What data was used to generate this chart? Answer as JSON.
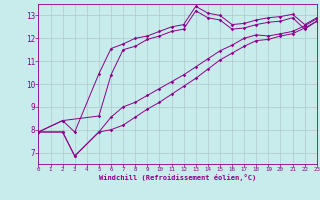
{
  "xlabel": "Windchill (Refroidissement éolien,°C)",
  "xlim": [
    0,
    23
  ],
  "ylim": [
    6.5,
    13.5
  ],
  "xticks": [
    0,
    1,
    2,
    3,
    4,
    5,
    6,
    7,
    8,
    9,
    10,
    11,
    12,
    13,
    14,
    15,
    16,
    17,
    18,
    19,
    20,
    21,
    22,
    23
  ],
  "yticks": [
    7,
    8,
    9,
    10,
    11,
    12,
    13
  ],
  "line_color": "#8b008b",
  "bg_color": "#c8ecec",
  "grid_color": "#b0c8c8",
  "lines": [
    {
      "x": [
        0,
        2,
        3,
        5,
        6,
        7,
        8,
        9,
        10,
        11,
        12,
        13,
        14,
        15,
        16,
        17,
        18,
        19,
        20,
        21,
        22,
        23
      ],
      "y": [
        7.9,
        8.4,
        7.9,
        10.45,
        11.55,
        11.75,
        12.0,
        12.1,
        12.3,
        12.5,
        12.6,
        13.4,
        13.1,
        13.0,
        12.6,
        12.65,
        12.8,
        12.9,
        12.95,
        13.05,
        12.6,
        12.9
      ]
    },
    {
      "x": [
        0,
        2,
        5,
        6,
        7,
        8,
        9,
        10,
        11,
        12,
        13,
        14,
        15,
        16,
        17,
        18,
        19,
        20,
        21,
        22,
        23
      ],
      "y": [
        7.9,
        8.4,
        8.6,
        10.4,
        11.5,
        11.65,
        11.95,
        12.1,
        12.3,
        12.4,
        13.2,
        12.9,
        12.8,
        12.4,
        12.45,
        12.6,
        12.7,
        12.75,
        12.9,
        12.4,
        12.75
      ]
    },
    {
      "x": [
        0,
        2,
        3,
        5,
        6,
        7,
        8,
        9,
        10,
        11,
        12,
        13,
        14,
        15,
        16,
        17,
        18,
        19,
        20,
        21,
        22,
        23
      ],
      "y": [
        7.9,
        7.9,
        6.85,
        7.9,
        8.55,
        9.0,
        9.2,
        9.5,
        9.8,
        10.1,
        10.4,
        10.75,
        11.1,
        11.45,
        11.7,
        12.0,
        12.15,
        12.1,
        12.2,
        12.3,
        12.55,
        12.85
      ]
    },
    {
      "x": [
        0,
        2,
        3,
        5,
        6,
        7,
        8,
        9,
        10,
        11,
        12,
        13,
        14,
        15,
        16,
        17,
        18,
        19,
        20,
        21,
        22,
        23
      ],
      "y": [
        7.9,
        7.9,
        6.85,
        7.9,
        8.0,
        8.2,
        8.55,
        8.9,
        9.2,
        9.55,
        9.9,
        10.25,
        10.65,
        11.05,
        11.35,
        11.65,
        11.9,
        11.95,
        12.1,
        12.2,
        12.45,
        12.75
      ]
    }
  ]
}
